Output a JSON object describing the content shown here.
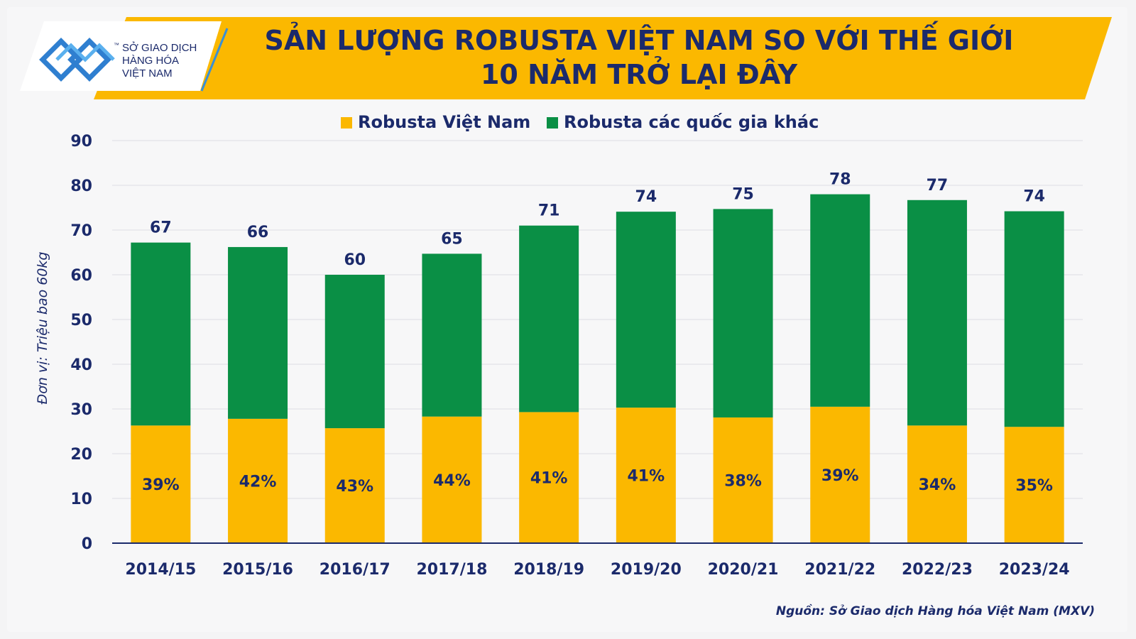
{
  "header": {
    "title_line1": "SẢN LƯỢNG ROBUSTA VIỆT NAM SO VỚI THẾ GIỚI",
    "title_line2": "10 NĂM TRỞ LẠI ĐÂY"
  },
  "logo": {
    "line1": "SỞ GIAO DỊCH",
    "line2": "HÀNG HÓA",
    "line3": "VIỆT NAM",
    "tm": "™"
  },
  "source": "Nguồn: Sở Giao dịch Hàng hóa Việt Nam (MXV)",
  "colors": {
    "banner": "#fbb800",
    "vietnam": "#fbb800",
    "others": "#0a8f45",
    "text": "#1b2a6b"
  },
  "chart_data": {
    "type": "bar",
    "stacked": true,
    "categories": [
      "2014/15",
      "2015/16",
      "2016/17",
      "2017/18",
      "2018/19",
      "2019/20",
      "2020/21",
      "2021/22",
      "2022/23",
      "2023/24"
    ],
    "series": [
      {
        "name": "Robusta Việt Nam",
        "values": [
          26.3,
          27.8,
          25.7,
          28.3,
          29.3,
          30.3,
          28.1,
          30.5,
          26.3,
          26.0
        ],
        "color": "#fbb800"
      },
      {
        "name": "Robusta các quốc gia khác",
        "values": [
          40.9,
          38.4,
          34.3,
          36.4,
          41.7,
          43.8,
          46.6,
          47.5,
          50.4,
          48.2
        ],
        "color": "#0a8f45"
      }
    ],
    "totals": [
      "67",
      "66",
      "60",
      "65",
      "71",
      "74",
      "75",
      "78",
      "77",
      "74"
    ],
    "share_labels": [
      "39%",
      "42%",
      "43%",
      "44%",
      "41%",
      "41%",
      "38%",
      "39%",
      "34%",
      "35%"
    ],
    "ylabel": "Đơn vị: Triệu bao 60kg",
    "xlabel": "",
    "ylim": [
      0,
      90
    ],
    "yticks": [
      0,
      10,
      20,
      30,
      40,
      50,
      60,
      70,
      80,
      90
    ],
    "grid": true,
    "legend_position": "top-center"
  }
}
